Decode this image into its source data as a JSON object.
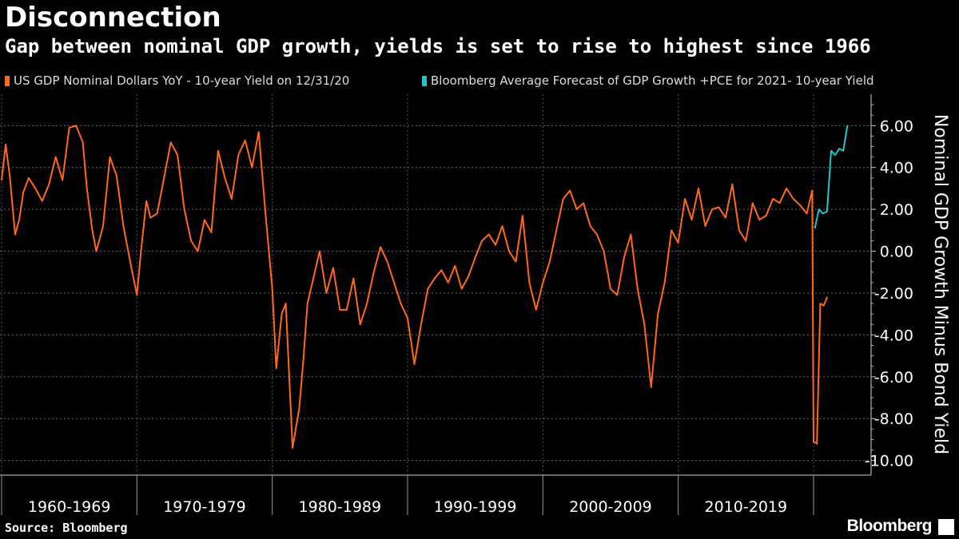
{
  "header": {
    "title": "Disconnection",
    "subtitle": "Gap between nominal GDP growth, yields is set to rise to highest since 1966"
  },
  "footer": {
    "source": "Source: Bloomberg",
    "brand": "Bloomberg"
  },
  "colors": {
    "background": "#000000",
    "orange": "#ff6a1a",
    "teal": "#1fc7cc",
    "grid": "#777777"
  },
  "chart_data": {
    "type": "line",
    "title": "Disconnection",
    "ylabel": "Nominal GDP Growth Minus Bond Yield",
    "ylim": [
      -10.7,
      7.5
    ],
    "yticks": [
      6,
      4,
      2,
      0,
      -2,
      -4,
      -6,
      -8,
      -10
    ],
    "ytick_labels": [
      "6.00",
      "4.00",
      "2.00",
      "0.00",
      "-2.00",
      "-4.00",
      "-6.00",
      "-8.00",
      "-10.00"
    ],
    "xlim": [
      1960,
      2022.6
    ],
    "x_category_labels": [
      "1960-1969",
      "1970-1979",
      "1980-1989",
      "1990-1999",
      "2000-2009",
      "2010-2019"
    ],
    "x_category_bounds": [
      1960,
      1970,
      1980,
      1990,
      2000,
      2010,
      2020
    ],
    "legend_position": "top",
    "series": [
      {
        "name": "US GDP Nominal Dollars YoY - 10-year Yield on 12/31/20",
        "color": "#ff6a1a",
        "x": [
          1960.0,
          1960.3,
          1960.6,
          1961.0,
          1961.3,
          1961.6,
          1962.0,
          1962.5,
          1963.0,
          1963.5,
          1964.0,
          1964.5,
          1965.0,
          1965.5,
          1966.0,
          1966.3,
          1966.7,
          1967.0,
          1967.5,
          1968.0,
          1968.5,
          1969.0,
          1969.5,
          1970.0,
          1970.3,
          1970.7,
          1971.0,
          1971.5,
          1972.0,
          1972.5,
          1973.0,
          1973.5,
          1974.0,
          1974.5,
          1975.0,
          1975.5,
          1976.0,
          1976.5,
          1977.0,
          1977.5,
          1978.0,
          1978.5,
          1979.0,
          1979.5,
          1980.0,
          1980.3,
          1980.7,
          1981.0,
          1981.5,
          1982.0,
          1982.3,
          1982.6,
          1983.0,
          1983.5,
          1984.0,
          1984.5,
          1985.0,
          1985.5,
          1986.0,
          1986.5,
          1987.0,
          1987.5,
          1988.0,
          1988.5,
          1989.0,
          1989.5,
          1990.0,
          1990.5,
          1991.0,
          1991.5,
          1992.0,
          1992.5,
          1993.0,
          1993.5,
          1994.0,
          1994.5,
          1995.0,
          1995.5,
          1996.0,
          1996.5,
          1997.0,
          1997.5,
          1998.0,
          1998.5,
          1999.0,
          1999.5,
          2000.0,
          2000.5,
          2001.0,
          2001.5,
          2002.0,
          2002.5,
          2003.0,
          2003.5,
          2004.0,
          2004.5,
          2005.0,
          2005.5,
          2006.0,
          2006.5,
          2007.0,
          2007.5,
          2008.0,
          2008.5,
          2009.0,
          2009.5,
          2010.0,
          2010.5,
          2011.0,
          2011.5,
          2012.0,
          2012.5,
          2013.0,
          2013.5,
          2014.0,
          2014.5,
          2015.0,
          2015.5,
          2016.0,
          2016.5,
          2017.0,
          2017.5,
          2018.0,
          2018.5,
          2019.0,
          2019.5,
          2019.9,
          2020.0,
          2020.25,
          2020.5,
          2020.75,
          2021.0
        ],
        "values": [
          3.4,
          5.1,
          3.6,
          0.8,
          1.5,
          2.8,
          3.5,
          3.0,
          2.4,
          3.2,
          4.5,
          3.4,
          5.9,
          6.0,
          5.2,
          3.0,
          1.0,
          0.0,
          1.2,
          4.5,
          3.6,
          1.2,
          -0.5,
          -2.1,
          0.0,
          2.4,
          1.6,
          1.8,
          3.5,
          5.2,
          4.6,
          2.0,
          0.5,
          0.0,
          1.5,
          0.9,
          4.8,
          3.5,
          2.5,
          4.6,
          5.3,
          4.0,
          5.7,
          1.8,
          -1.8,
          -5.6,
          -3.0,
          -2.5,
          -9.4,
          -7.5,
          -5.2,
          -2.5,
          -1.4,
          0.0,
          -2.0,
          -0.8,
          -2.8,
          -2.8,
          -1.3,
          -3.5,
          -2.5,
          -1.0,
          0.2,
          -0.5,
          -1.5,
          -2.5,
          -3.2,
          -5.4,
          -3.5,
          -1.8,
          -1.3,
          -0.9,
          -1.5,
          -0.7,
          -1.8,
          -1.2,
          -0.3,
          0.5,
          0.8,
          0.3,
          1.2,
          0.0,
          -0.5,
          1.7,
          -1.5,
          -2.8,
          -1.5,
          -0.5,
          1.0,
          2.5,
          2.9,
          2.0,
          2.3,
          1.2,
          0.8,
          0.0,
          -1.8,
          -2.1,
          -0.3,
          0.8,
          -1.8,
          -3.5,
          -6.5,
          -3.0,
          -1.5,
          1.0,
          0.4,
          2.5,
          1.5,
          3.0,
          1.2,
          2.0,
          2.1,
          1.6,
          3.2,
          1.0,
          0.5,
          2.3,
          1.5,
          1.7,
          2.5,
          2.3,
          3.0,
          2.5,
          2.2,
          1.8,
          2.9,
          -9.1,
          -9.2,
          -2.5,
          -2.6,
          -2.2
        ]
      },
      {
        "name": "Bloomberg Average Forecast of GDP Growth +PCE for 2021- 10-year Yield",
        "color": "#1fc7cc",
        "x": [
          2020.1,
          2020.4,
          2020.7,
          2021.0,
          2021.3,
          2021.6,
          2021.9,
          2022.2,
          2022.5
        ],
        "values": [
          1.1,
          2.0,
          1.8,
          1.9,
          4.8,
          4.6,
          4.9,
          4.8,
          6.0
        ]
      }
    ]
  }
}
